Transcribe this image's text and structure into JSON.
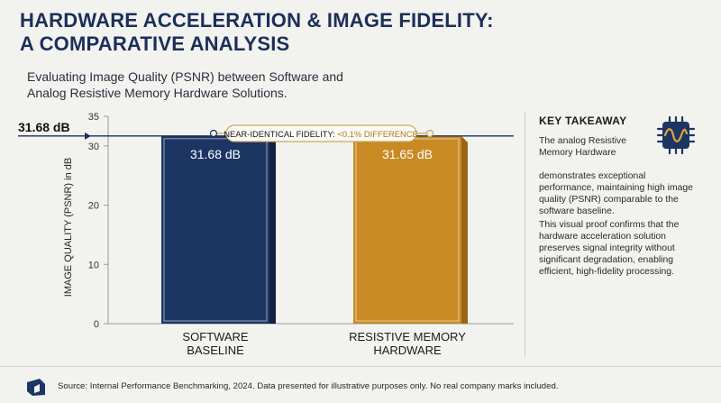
{
  "header": {
    "title_line1": "HARDWARE ACCELERATION & IMAGE FIDELITY:",
    "title_line2": "A COMPARATIVE ANALYSIS",
    "subtitle_line1": "Evaluating Image Quality (PSNR) between Software and",
    "subtitle_line2": "Analog Resistive Memory Hardware Solutions."
  },
  "colors": {
    "software": "#1c3563",
    "hardware": "#c98a24",
    "reference_line": "#1c2f5a",
    "annotation_border": "#c9a85a"
  },
  "chart_data": {
    "type": "bar",
    "categories": [
      "SOFTWARE BASELINE",
      "RESISTIVE MEMORY HARDWARE"
    ],
    "category_lines": [
      [
        "SOFTWARE",
        "BASELINE"
      ],
      [
        "RESISTIVE MEMORY",
        "HARDWARE"
      ]
    ],
    "values": [
      31.68,
      31.65
    ],
    "value_labels": [
      "31.68 dB",
      "31.65 dB"
    ],
    "ylabel": "IMAGE QUALITY (PSNR) in dB",
    "ylim": [
      0,
      35
    ],
    "yticks": [
      0,
      10,
      20,
      30,
      35
    ],
    "reference_line": {
      "value": 31.68,
      "label": "31.68 dB"
    },
    "annotation": {
      "label": "NEAR-IDENTICAL FIDELITY:",
      "highlight": "<0.1% DIFFERENCE"
    },
    "grid": false
  },
  "takeaway": {
    "title": "KEY TAKEAWAY",
    "p1a": "The analog Resistive Memory Hardware",
    "p1b": "demonstrates exceptional performance, maintaining high image quality (PSNR) comparable to the software baseline.",
    "p2": "This visual proof confirms that the hardware acceleration solution preserves signal integrity without significant degradation, enabling efficient, high-fidelity processing.",
    "icon": "chip-waveform-icon"
  },
  "footer": {
    "text": "Source: Internal Performance Benchmarking, 2024. Data presented for illustrative purposes only. No real company marks included.",
    "logo": "logo-icon"
  }
}
